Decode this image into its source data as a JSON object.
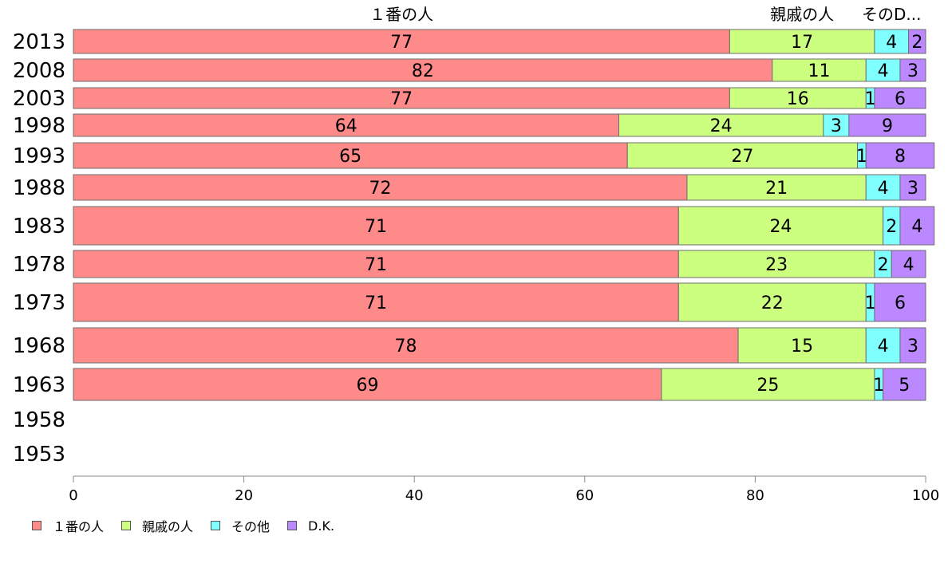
{
  "chart_data": {
    "type": "bar",
    "orientation": "horizontal",
    "stacked": true,
    "categories": [
      "2013",
      "2008",
      "2003",
      "1998",
      "1993",
      "1988",
      "1983",
      "1978",
      "1973",
      "1968",
      "1963",
      "1958",
      "1953"
    ],
    "series": [
      {
        "name": "１番の人",
        "color": "#ff8a8a",
        "values": [
          77,
          82,
          77,
          64,
          65,
          72,
          71,
          71,
          71,
          78,
          69,
          null,
          null
        ]
      },
      {
        "name": "親戚の人",
        "color": "#ccff80",
        "values": [
          17,
          11,
          16,
          24,
          27,
          21,
          24,
          23,
          22,
          15,
          25,
          null,
          null
        ]
      },
      {
        "name": "その他",
        "color": "#80ffff",
        "values": [
          4,
          4,
          1,
          3,
          1,
          4,
          2,
          2,
          1,
          4,
          1,
          null,
          null
        ]
      },
      {
        "name": "D.K.",
        "color": "#bb88ff",
        "values": [
          2,
          3,
          6,
          9,
          8,
          3,
          4,
          4,
          6,
          3,
          5,
          null,
          null
        ]
      }
    ],
    "top_labels": [
      "１番の人",
      "親戚の人",
      "そのD..."
    ],
    "xlim": [
      0,
      100
    ],
    "xticks": [
      "0",
      "20",
      "40",
      "60",
      "80",
      "100"
    ],
    "grid": false,
    "legend_position": "bottom-left"
  }
}
